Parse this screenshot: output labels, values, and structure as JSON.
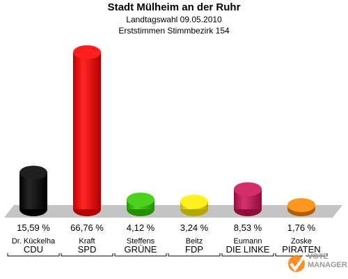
{
  "header": {
    "title": "Stadt Mülheim an der Ruhr",
    "subtitle": "Landtagswahl 09.05.2010",
    "subtitle2": "Erststimmen Stimmbezirk 154"
  },
  "chart_data": {
    "type": "bar",
    "title": "Stadt Mülheim an der Ruhr",
    "subtitle": "Landtagswahl 09.05.2010 / Erststimmen Stimmbezirk 154",
    "categories": [
      "CDU",
      "SPD",
      "GRÜNE",
      "FDP",
      "DIE LINKE",
      "PIRATEN"
    ],
    "candidates": [
      "Dr. Kückelha",
      "Kraft",
      "Steffens",
      "Beitz",
      "Eumann",
      "Zoske"
    ],
    "values": [
      15.59,
      66.76,
      4.12,
      3.24,
      8.53,
      1.76
    ],
    "value_labels": [
      "15,59 %",
      "66,76 %",
      "4,12 %",
      "3,24 %",
      "8,53 %",
      "1,76 %"
    ],
    "colors": [
      "#000000",
      "#ff0000",
      "#33cc00",
      "#ffee00",
      "#cc1155",
      "#ff8800"
    ],
    "ylim": [
      0,
      70
    ],
    "grid": false,
    "legend": "none"
  },
  "logo": {
    "line1": "VOTE",
    "line2": "MANAGER"
  }
}
